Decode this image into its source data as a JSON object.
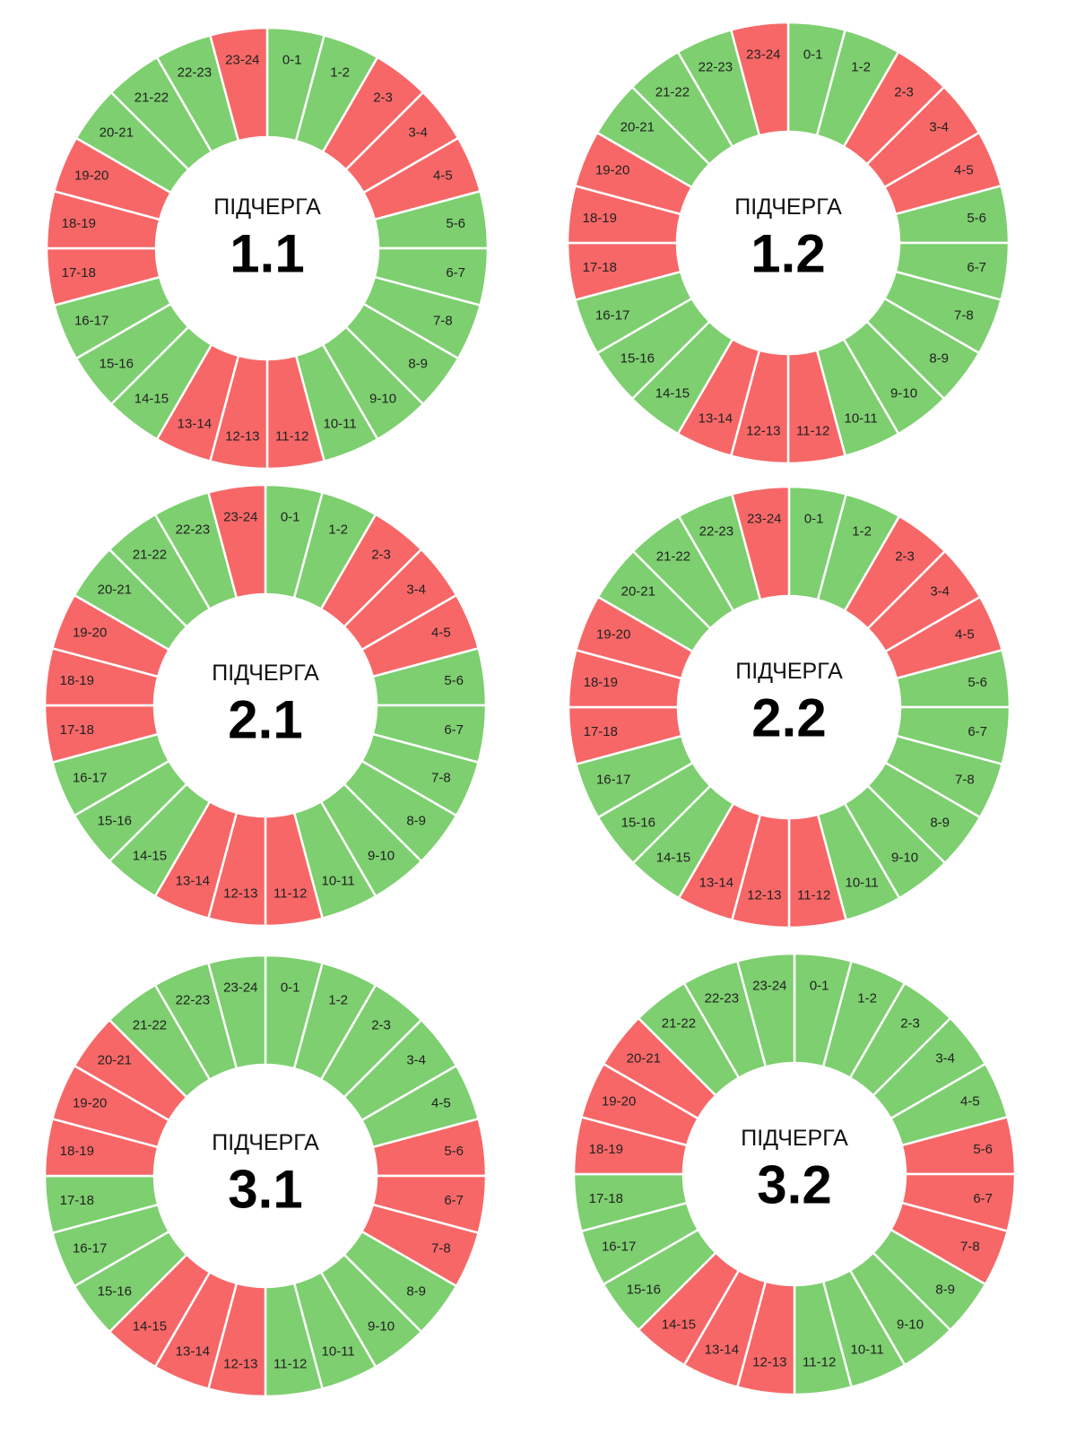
{
  "colors": {
    "on": "#7dcf6f",
    "off": "#f76767",
    "separator": "#ffffff"
  },
  "chart_data": [
    {
      "type": "pie",
      "caption": "ПІДЧЕРГА",
      "title": "1.1",
      "categories": [
        "0-1",
        "1-2",
        "2-3",
        "3-4",
        "4-5",
        "5-6",
        "6-7",
        "7-8",
        "8-9",
        "9-10",
        "10-11",
        "11-12",
        "12-13",
        "13-14",
        "14-15",
        "15-16",
        "16-17",
        "17-18",
        "18-19",
        "19-20",
        "20-21",
        "21-22",
        "22-23",
        "23-24"
      ],
      "status": [
        "on",
        "on",
        "off",
        "off",
        "off",
        "on",
        "on",
        "on",
        "on",
        "on",
        "on",
        "off",
        "off",
        "off",
        "on",
        "on",
        "on",
        "off",
        "off",
        "off",
        "on",
        "on",
        "on",
        "off"
      ]
    },
    {
      "type": "pie",
      "caption": "ПІДЧЕРГА",
      "title": "1.2",
      "categories": [
        "0-1",
        "1-2",
        "2-3",
        "3-4",
        "4-5",
        "5-6",
        "6-7",
        "7-8",
        "8-9",
        "9-10",
        "10-11",
        "11-12",
        "12-13",
        "13-14",
        "14-15",
        "15-16",
        "16-17",
        "17-18",
        "18-19",
        "19-20",
        "20-21",
        "21-22",
        "22-23",
        "23-24"
      ],
      "status": [
        "on",
        "on",
        "off",
        "off",
        "off",
        "on",
        "on",
        "on",
        "on",
        "on",
        "on",
        "off",
        "off",
        "off",
        "on",
        "on",
        "on",
        "off",
        "off",
        "off",
        "on",
        "on",
        "on",
        "off"
      ]
    },
    {
      "type": "pie",
      "caption": "ПІДЧЕРГА",
      "title": "2.1",
      "categories": [
        "0-1",
        "1-2",
        "2-3",
        "3-4",
        "4-5",
        "5-6",
        "6-7",
        "7-8",
        "8-9",
        "9-10",
        "10-11",
        "11-12",
        "12-13",
        "13-14",
        "14-15",
        "15-16",
        "16-17",
        "17-18",
        "18-19",
        "19-20",
        "20-21",
        "21-22",
        "22-23",
        "23-24"
      ],
      "status": [
        "on",
        "on",
        "off",
        "off",
        "off",
        "on",
        "on",
        "on",
        "on",
        "on",
        "on",
        "off",
        "off",
        "off",
        "on",
        "on",
        "on",
        "off",
        "off",
        "off",
        "on",
        "on",
        "on",
        "off"
      ]
    },
    {
      "type": "pie",
      "caption": "ПІДЧЕРГА",
      "title": "2.2",
      "categories": [
        "0-1",
        "1-2",
        "2-3",
        "3-4",
        "4-5",
        "5-6",
        "6-7",
        "7-8",
        "8-9",
        "9-10",
        "10-11",
        "11-12",
        "12-13",
        "13-14",
        "14-15",
        "15-16",
        "16-17",
        "17-18",
        "18-19",
        "19-20",
        "20-21",
        "21-22",
        "22-23",
        "23-24"
      ],
      "status": [
        "on",
        "on",
        "off",
        "off",
        "off",
        "on",
        "on",
        "on",
        "on",
        "on",
        "on",
        "off",
        "off",
        "off",
        "on",
        "on",
        "on",
        "off",
        "off",
        "off",
        "on",
        "on",
        "on",
        "off"
      ]
    },
    {
      "type": "pie",
      "caption": "ПІДЧЕРГА",
      "title": "3.1",
      "categories": [
        "0-1",
        "1-2",
        "2-3",
        "3-4",
        "4-5",
        "5-6",
        "6-7",
        "7-8",
        "8-9",
        "9-10",
        "10-11",
        "11-12",
        "12-13",
        "13-14",
        "14-15",
        "15-16",
        "16-17",
        "17-18",
        "18-19",
        "19-20",
        "20-21",
        "21-22",
        "22-23",
        "23-24"
      ],
      "status": [
        "on",
        "on",
        "on",
        "on",
        "on",
        "off",
        "off",
        "off",
        "on",
        "on",
        "on",
        "on",
        "off",
        "off",
        "off",
        "on",
        "on",
        "on",
        "off",
        "off",
        "off",
        "on",
        "on",
        "on"
      ]
    },
    {
      "type": "pie",
      "caption": "ПІДЧЕРГА",
      "title": "3.2",
      "categories": [
        "0-1",
        "1-2",
        "2-3",
        "3-4",
        "4-5",
        "5-6",
        "6-7",
        "7-8",
        "8-9",
        "9-10",
        "10-11",
        "11-12",
        "12-13",
        "13-14",
        "14-15",
        "15-16",
        "16-17",
        "17-18",
        "18-19",
        "19-20",
        "20-21",
        "21-22",
        "22-23",
        "23-24"
      ],
      "status": [
        "on",
        "on",
        "on",
        "on",
        "on",
        "off",
        "off",
        "off",
        "on",
        "on",
        "on",
        "on",
        "off",
        "off",
        "off",
        "on",
        "on",
        "on",
        "off",
        "off",
        "off",
        "on",
        "on",
        "on"
      ]
    }
  ]
}
